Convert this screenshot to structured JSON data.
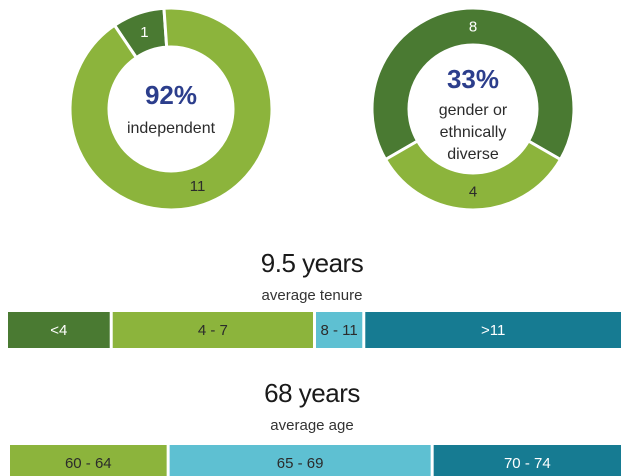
{
  "colors": {
    "dark_green": "#4a7a32",
    "light_green": "#8cb43c",
    "light_teal": "#5ec0d2",
    "dark_teal": "#167b92",
    "navy": "#2c3e8c",
    "white": "#ffffff"
  },
  "chart_data": [
    {
      "type": "pie",
      "donut": true,
      "segments": [
        {
          "label": "1",
          "value": 1,
          "color": "#4a7a32"
        },
        {
          "label": "11",
          "value": 11,
          "color": "#8cb43c"
        }
      ],
      "center_value": "92%",
      "center_label": [
        "independent"
      ]
    },
    {
      "type": "pie",
      "donut": true,
      "segments": [
        {
          "label": "8",
          "value": 8,
          "color": "#4a7a32"
        },
        {
          "label": "4",
          "value": 4,
          "color": "#8cb43c"
        }
      ],
      "center_value": "33%",
      "center_label": [
        "gender or",
        "ethnically",
        "diverse"
      ]
    },
    {
      "type": "bar",
      "orientation": "horizontal-stacked",
      "title": "9.5 years",
      "subtitle": "average tenure",
      "categories": [
        "<4",
        "4 - 7",
        "8 - 11",
        ">11"
      ],
      "shares": [
        0.17,
        0.33,
        0.08,
        0.42
      ],
      "colors": [
        "#4a7a32",
        "#8cb43c",
        "#5ec0d2",
        "#167b92"
      ]
    },
    {
      "type": "bar",
      "orientation": "horizontal-stacked",
      "title": "68 years",
      "subtitle": "average age",
      "categories": [
        "60 - 64",
        "65 - 69",
        "70 - 74"
      ],
      "shares": [
        0.26,
        0.43,
        0.31
      ],
      "colors": [
        "#8cb43c",
        "#5ec0d2",
        "#167b92"
      ]
    }
  ]
}
